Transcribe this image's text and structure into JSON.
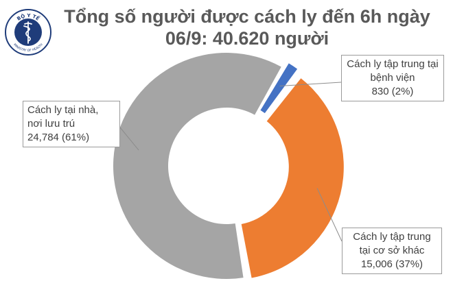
{
  "title_line1": "Tổng số người được cách ly đến 6h ngày",
  "title_line2": "06/9: 40.620 người",
  "logo": {
    "text_top": "BỘ Y TẾ",
    "text_bottom": "MINISTRY OF HEALTH",
    "icon": "caduceus-icon",
    "color": "#1f3c7a"
  },
  "chart_data": {
    "type": "pie",
    "title": "Tổng số người được cách ly đến 6h ngày 06/9: 40.620 người",
    "total_label": "40.620 người",
    "slices": [
      {
        "id": "hospital",
        "lines": [
          "Cách ly tập trung tại",
          "bệnh viện",
          "830 (2%)"
        ],
        "value": 830,
        "percent": 2,
        "color": "#4472c4"
      },
      {
        "id": "other",
        "lines": [
          "Cách ly tập trung",
          "tại cơ sở khác",
          "15,006 (37%)"
        ],
        "value": 15006,
        "percent": 37,
        "color": "#ed7d31"
      },
      {
        "id": "home",
        "lines": [
          "Cách ly tại nhà,",
          "nơi lưu trú",
          "24,784 (61%)"
        ],
        "value": 24784,
        "percent": 61,
        "color": "#a5a5a5"
      }
    ]
  }
}
